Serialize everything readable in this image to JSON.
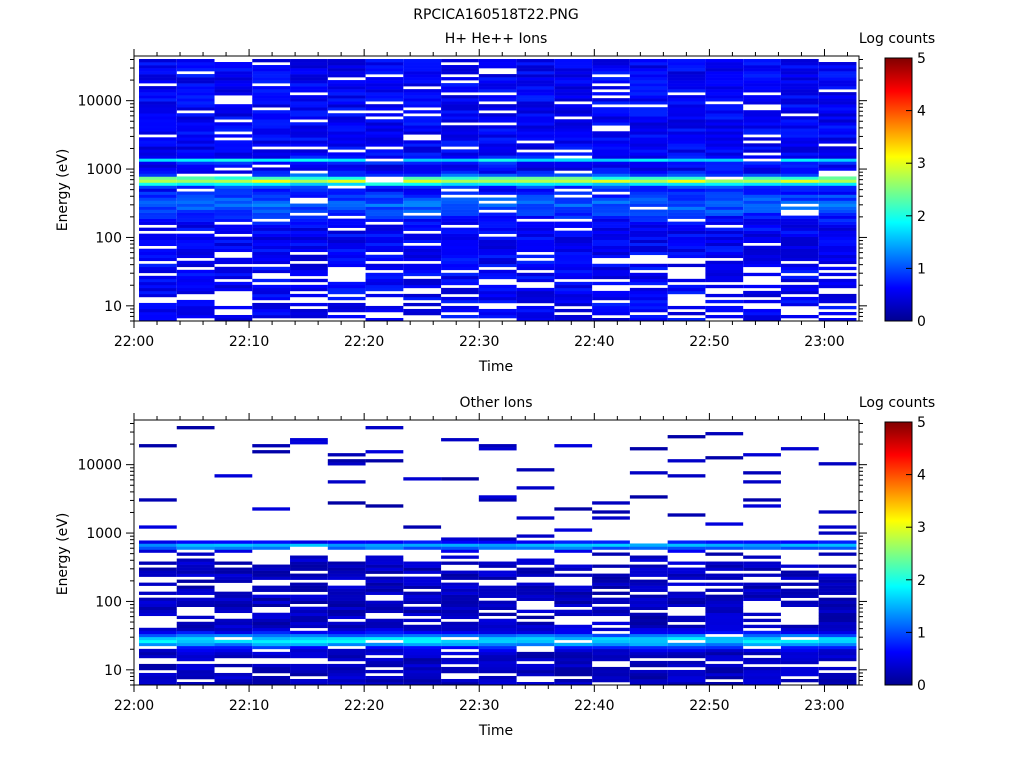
{
  "figure_title": "RPCICA160518T22.PNG",
  "colorbar_label": "Log counts",
  "colorscale": [
    "#00008f",
    "#0000ff",
    "#0080ff",
    "#00ffff",
    "#80ff80",
    "#ffff00",
    "#ff8000",
    "#ff0000",
    "#800000"
  ],
  "chart_data": [
    {
      "type": "heatmap",
      "title": "H+ He++ Ions",
      "xlabel": "Time",
      "ylabel": "Energy (eV)",
      "x_ticks": [
        "22:00",
        "22:10",
        "22:20",
        "22:30",
        "22:40",
        "22:50",
        "23:00"
      ],
      "x_range": [
        "22:00",
        "23:03"
      ],
      "y_scale": "log",
      "y_ticks": [
        10,
        100,
        1000,
        10000
      ],
      "y_range": [
        6,
        45000
      ],
      "colorbar": {
        "label": "Log counts",
        "range": [
          0,
          5
        ],
        "ticks": [
          0,
          1,
          2,
          3,
          4,
          5
        ]
      },
      "time_bins": 19,
      "features": [
        {
          "energy_ev": 700,
          "log_counts": 2.7,
          "note": ""
        },
        {
          "energy_ev": 600,
          "log_counts": 2.3,
          "note": ""
        },
        {
          "energy_ev": 1350,
          "log_counts": 1.5,
          "note": ""
        },
        {
          "energy_ev_range": [
            50,
            45000
          ],
          "log_counts_range": [
            0.1,
            1.0
          ]
        },
        {
          "energy_ev_range": [
            6,
            50
          ],
          "log_counts_range": [
            0,
            0.6
          ]
        }
      ]
    },
    {
      "type": "heatmap",
      "title": "Other Ions",
      "xlabel": "Time",
      "ylabel": "Energy (eV)",
      "x_ticks": [
        "22:00",
        "22:10",
        "22:20",
        "22:30",
        "22:40",
        "22:50",
        "23:00"
      ],
      "x_range": [
        "22:00",
        "23:03"
      ],
      "y_scale": "log",
      "y_ticks": [
        10,
        100,
        1000,
        10000
      ],
      "y_range": [
        6,
        45000
      ],
      "colorbar": {
        "label": "Log counts",
        "range": [
          0,
          5
        ],
        "ticks": [
          0,
          1,
          2,
          3,
          4,
          5
        ]
      },
      "time_bins": 19,
      "features": [
        {
          "energy_ev": 650,
          "log_counts": 1.3
        },
        {
          "energy_ev": 28,
          "log_counts": 1.8
        },
        {
          "energy_ev": 24,
          "log_counts": 1.4
        },
        {
          "energy_ev_range": [
            40,
            400
          ],
          "log_counts_range": [
            0,
            0.6
          ]
        },
        {
          "energy_ev_range": [
            1000,
            45000
          ],
          "log_counts_range": [
            0,
            0.2
          ]
        }
      ]
    }
  ]
}
